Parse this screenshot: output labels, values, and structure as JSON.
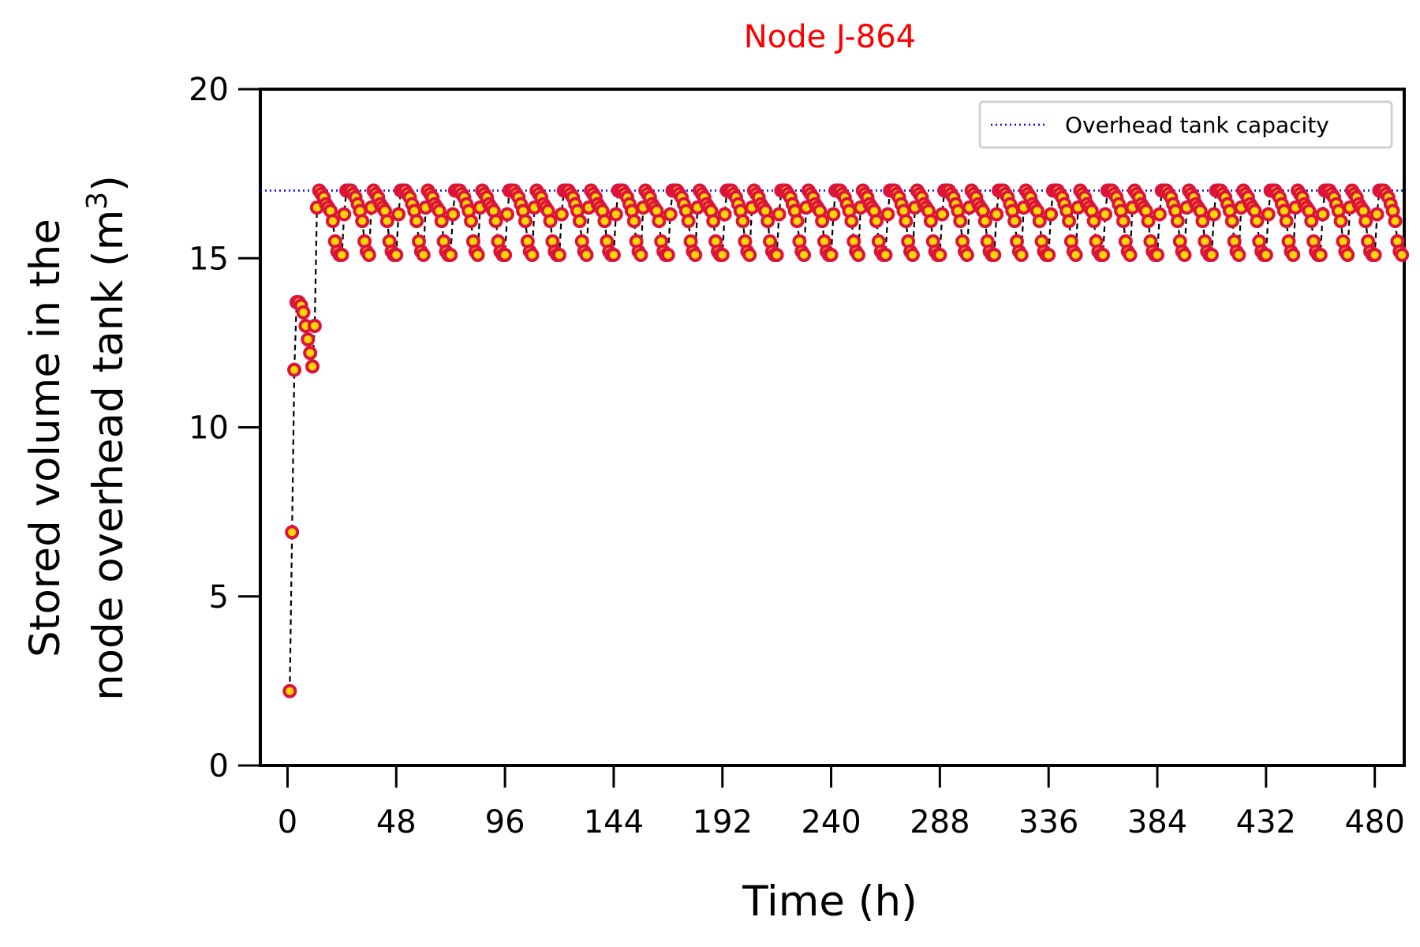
{
  "chart_data": {
    "type": "line",
    "title": "Node J-864",
    "title_color": "#ff0000",
    "xlabel": "Time (h)",
    "ylabel_line1": "Stored volume in the",
    "ylabel_line2_prefix": "node overhead tank (m",
    "ylabel_superscript": "3",
    "ylabel_line2_suffix": ")",
    "xlim": [
      -12,
      493
    ],
    "ylim": [
      0,
      20
    ],
    "xticks": [
      0,
      48,
      96,
      144,
      192,
      240,
      288,
      336,
      384,
      432,
      480
    ],
    "yticks": [
      0,
      5,
      10,
      15,
      20
    ],
    "grid": false,
    "legend_position": "top-right",
    "capacity_line": {
      "name": "Overhead tank capacity",
      "y": 17.0,
      "color": "#0000ff",
      "style": "dotted"
    },
    "series": [
      {
        "marker_edge_color": "#dc143c",
        "marker_face_color": "#ffd700",
        "line_color": "#000000",
        "line_style": "dashed",
        "initial": {
          "x": [
            1,
            2,
            3,
            4,
            5,
            6,
            7,
            8,
            9,
            10,
            11,
            12
          ],
          "y": [
            2.2,
            6.9,
            11.7,
            13.7,
            13.7,
            13.6,
            13.4,
            13.0,
            12.6,
            12.2,
            11.8,
            13.0
          ]
        },
        "cycle": {
          "start_x": 13,
          "period_h": 24,
          "count": 20,
          "profile": [
            16.5,
            17.0,
            16.9,
            16.8,
            16.6,
            16.5,
            16.4,
            16.1,
            15.5,
            15.2,
            15.1,
            15.1,
            16.3,
            17.0,
            17.0,
            17.0,
            16.9,
            16.8,
            16.6,
            16.4,
            16.1,
            15.5,
            15.2,
            15.1
          ]
        }
      }
    ]
  }
}
